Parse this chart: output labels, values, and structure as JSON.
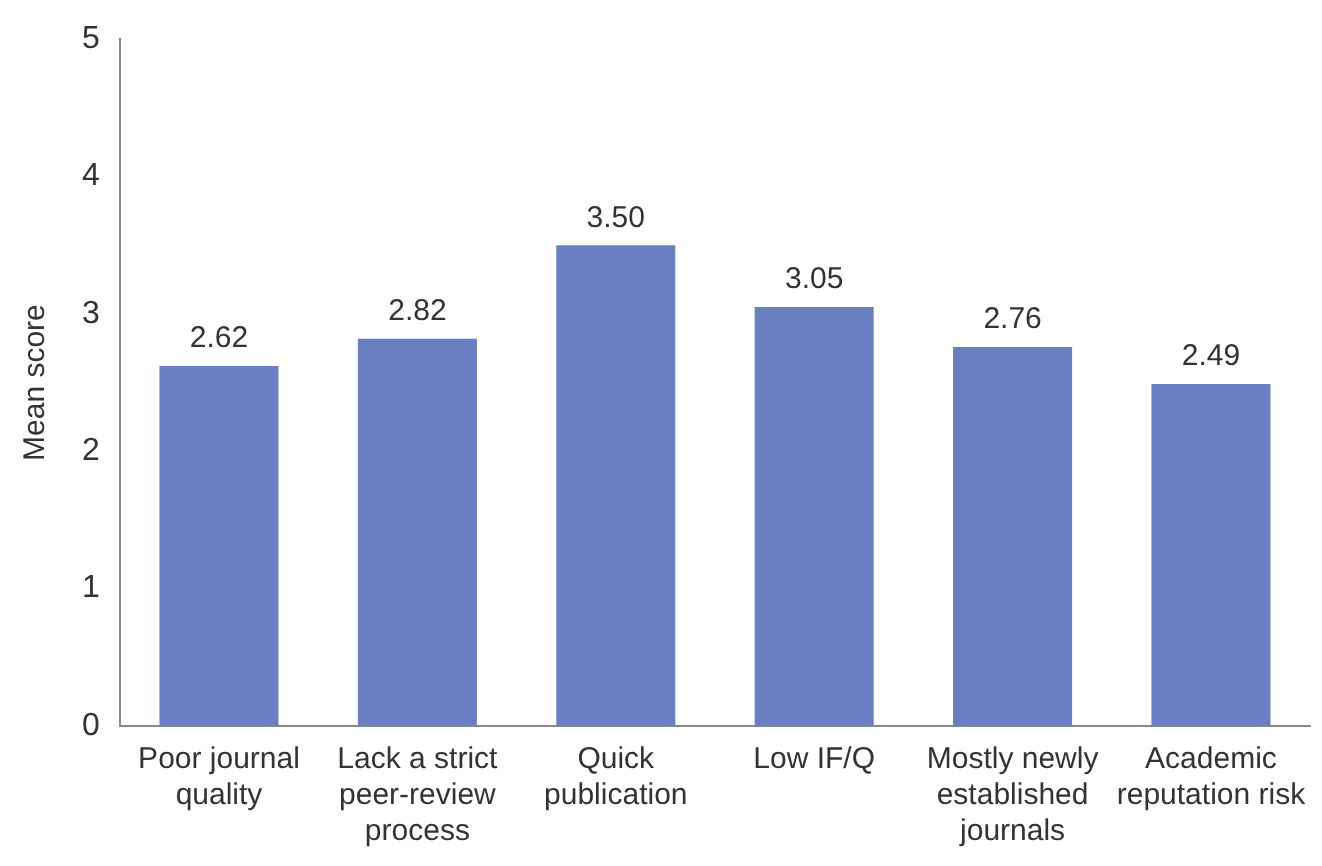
{
  "chart_data": {
    "type": "bar",
    "ylabel": "Mean score",
    "categories": [
      "Poor journal quality",
      "Lack a strict peer-review process",
      "Quick publication",
      "Low IF/Q",
      "Mostly newly established journals",
      "Academic reputation risk"
    ],
    "values": [
      2.62,
      2.82,
      3.5,
      3.05,
      2.76,
      2.49
    ],
    "value_labels": [
      "2.62",
      "2.82",
      "3.50",
      "3.05",
      "2.76",
      "2.49"
    ],
    "color": "#6a7fc1",
    "ylim": [
      0,
      5
    ],
    "yticks": [
      0,
      1,
      2,
      3,
      4,
      5
    ],
    "grid": false,
    "legend": false
  }
}
